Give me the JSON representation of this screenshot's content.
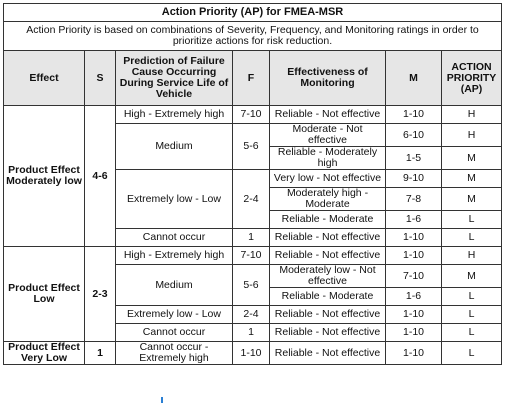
{
  "title": "Action Priority (AP) for FMEA-MSR",
  "intro": "Action Priority is based on combinations of Severity, Frequency, and Monitoring ratings in order to prioritize actions for risk reduction.",
  "headers": {
    "effect": "Effect",
    "s": "S",
    "prediction": "Prediction of Failure Cause Occurring During Service Life of Vehicle",
    "f": "F",
    "effectiveness": "Effectiveness of Monitoring",
    "m": "M",
    "ap": "ACTION PRIORITY (AP)"
  },
  "groups": [
    {
      "effect": "Product Effect Moderately low",
      "s": "4-6",
      "predictions": [
        {
          "label": "High - Extremely high",
          "f": "7-10",
          "rows": [
            {
              "monitoring": "Reliable - Not effective",
              "m": "1-10",
              "ap": "H"
            }
          ]
        },
        {
          "label": "Medium",
          "f": "5-6",
          "rows": [
            {
              "monitoring": "Moderate - Not effective",
              "m": "6-10",
              "ap": "H"
            },
            {
              "monitoring": "Reliable - Moderately high",
              "m": "1-5",
              "ap": "M"
            }
          ]
        },
        {
          "label": "Extremely low - Low",
          "f": "2-4",
          "rows": [
            {
              "monitoring": "Very low - Not effective",
              "m": "9-10",
              "ap": "M"
            },
            {
              "monitoring": "Moderately high - Moderate",
              "m": "7-8",
              "ap": "M"
            },
            {
              "monitoring": "Reliable - Moderate",
              "m": "1-6",
              "ap": "L"
            }
          ]
        },
        {
          "label": "Cannot occur",
          "f": "1",
          "rows": [
            {
              "monitoring": "Reliable - Not effective",
              "m": "1-10",
              "ap": "L"
            }
          ]
        }
      ]
    },
    {
      "effect": "Product Effect Low",
      "s": "2-3",
      "predictions": [
        {
          "label": "High - Extremely high",
          "f": "7-10",
          "rows": [
            {
              "monitoring": "Reliable - Not effective",
              "m": "1-10",
              "ap": "H"
            }
          ]
        },
        {
          "label": "Medium",
          "f": "5-6",
          "rows": [
            {
              "monitoring": "Moderately low - Not effective",
              "m": "7-10",
              "ap": "M"
            },
            {
              "monitoring": "Reliable - Moderate",
              "m": "1-6",
              "ap": "L"
            }
          ]
        },
        {
          "label": "Extremely low - Low",
          "f": "2-4",
          "rows": [
            {
              "monitoring": "Reliable - Not effective",
              "m": "1-10",
              "ap": "L"
            }
          ]
        },
        {
          "label": "Cannot occur",
          "f": "1",
          "rows": [
            {
              "monitoring": "Reliable - Not effective",
              "m": "1-10",
              "ap": "L"
            }
          ]
        }
      ]
    },
    {
      "effect": "Product Effect Very Low",
      "s": "1",
      "predictions": [
        {
          "label": "Cannot occur - Extremely high",
          "f": "1-10",
          "rows": [
            {
              "monitoring": "Reliable - Not effective",
              "m": "1-10",
              "ap": "L"
            }
          ]
        }
      ]
    }
  ]
}
